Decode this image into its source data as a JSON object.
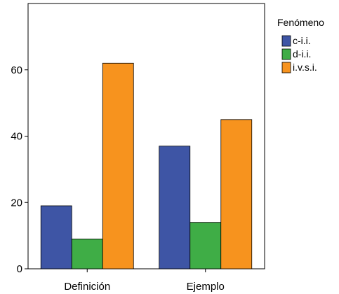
{
  "chart_data": {
    "type": "bar",
    "categories": [
      "Definición",
      "Ejemplo"
    ],
    "series": [
      {
        "name": "c-i.i.",
        "values": [
          19,
          37
        ],
        "color": "#3e55a5"
      },
      {
        "name": "d-i.i.",
        "values": [
          9,
          14
        ],
        "color": "#3fad46"
      },
      {
        "name": "i.v.s.i.",
        "values": [
          62,
          45
        ],
        "color": "#f7931e"
      }
    ],
    "y_ticks": [
      0,
      20,
      40,
      60
    ],
    "ylim": [
      0,
      80
    ],
    "legend_title": "Fenómeno",
    "legend_position": "top-right",
    "grid": false
  }
}
